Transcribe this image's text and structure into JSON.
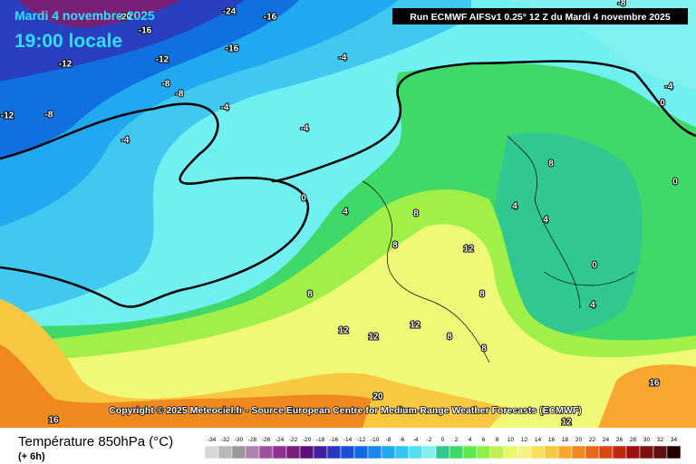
{
  "header": {
    "date": "Mardi 4 novembre 2025",
    "time": "19:00 locale",
    "run": "Run ECMWF AIFSv1 0.25° 12 Z du Mardi 4 novembre 2025"
  },
  "copyright": "Copyright © 2025 Meteociel.fr - Source European Centre for Medium-Range Weather Forecasts (ECMWF)",
  "legend": {
    "title": "Température 850hPa (°C)",
    "step": "(+ 6h)",
    "scale": {
      "values": [
        -34,
        -32,
        -30,
        -28,
        -26,
        -24,
        -22,
        -20,
        -18,
        -16,
        -14,
        -12,
        -10,
        -8,
        -6,
        -4,
        -2,
        0,
        2,
        4,
        6,
        8,
        10,
        12,
        14,
        16,
        18,
        20,
        22,
        24,
        26,
        28,
        30,
        32,
        34
      ],
      "colors": [
        "#d8d8d8",
        "#b8b8b8",
        "#989898",
        "#b080b0",
        "#a050a0",
        "#903090",
        "#782078",
        "#5a1078",
        "#4020a0",
        "#2838c0",
        "#1850d8",
        "#1068e8",
        "#1888f0",
        "#20a8f0",
        "#30c8f0",
        "#50e0f0",
        "#80f0f0",
        "#30c890",
        "#40d868",
        "#60e850",
        "#90f048",
        "#c0f050",
        "#e8f868",
        "#f8f080",
        "#f8e058",
        "#f8c840",
        "#f8a830",
        "#f08820",
        "#e86818",
        "#d84810",
        "#c02810",
        "#a01010",
        "#801010",
        "#601010",
        "#200000"
      ]
    }
  },
  "contours": [
    -24,
    -16,
    -20,
    -16,
    -16,
    -12,
    -12,
    -4,
    -8,
    -8,
    -4,
    -12,
    -8,
    -4,
    -4,
    0,
    4,
    8,
    8,
    12,
    8,
    12,
    12,
    12,
    8,
    4,
    0,
    4,
    8,
    8,
    8,
    20,
    16,
    16,
    12,
    0,
    0,
    -4,
    4,
    -8
  ]
}
